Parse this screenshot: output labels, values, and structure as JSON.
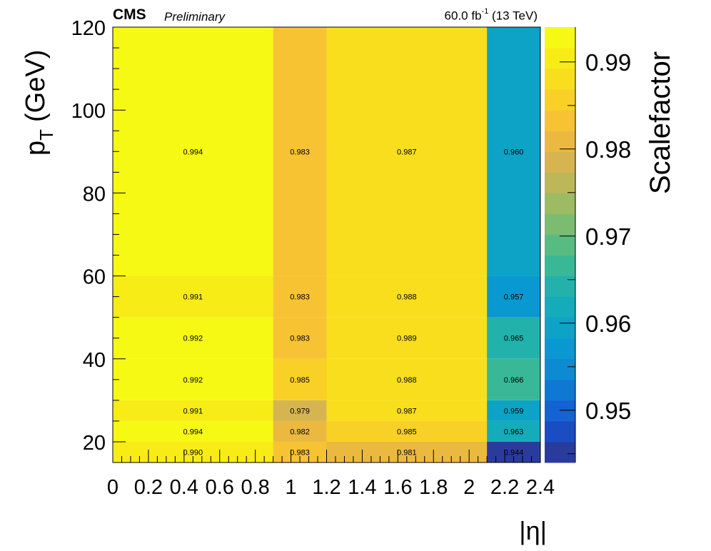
{
  "header": {
    "experiment": "CMS",
    "status": "Preliminary",
    "luminosity_prefix": "60.0 fb",
    "luminosity_exp": "-1",
    "energy": "(13 TeV)"
  },
  "chart_data": {
    "type": "heatmap",
    "title": "",
    "xlabel": "|η|",
    "ylabel_main": "p",
    "ylabel_sub": "T",
    "ylabel_unit": "(GeV)",
    "zlabel": "Scalefactor",
    "x_edges": [
      0,
      0.9,
      1.2,
      2.1,
      2.4
    ],
    "y_edges": [
      15,
      20,
      25,
      30,
      40,
      50,
      60,
      120
    ],
    "xlim": [
      0,
      2.4
    ],
    "ylim": [
      15,
      120
    ],
    "zlim": [
      0.944,
      0.994
    ],
    "x_tick_labels": [
      "0",
      "0.2",
      "0.4",
      "0.6",
      "0.8",
      "1",
      "1.2",
      "1.4",
      "1.6",
      "1.8",
      "2",
      "2.2",
      "2.4"
    ],
    "x_tick_values": [
      0,
      0.2,
      0.4,
      0.6,
      0.8,
      1,
      1.2,
      1.4,
      1.6,
      1.8,
      2,
      2.2,
      2.4
    ],
    "y_tick_labels": [
      "20",
      "40",
      "60",
      "80",
      "100",
      "120"
    ],
    "y_tick_values": [
      20,
      40,
      60,
      80,
      100,
      120
    ],
    "z_tick_labels": [
      "0.95",
      "0.96",
      "0.97",
      "0.98",
      "0.99"
    ],
    "z_tick_values": [
      0.95,
      0.96,
      0.97,
      0.98,
      0.99
    ],
    "values": [
      [
        "0.990",
        "0.983",
        "0.981",
        "0.944"
      ],
      [
        "0.994",
        "0.982",
        "0.985",
        "0.963"
      ],
      [
        "0.991",
        "0.979",
        "0.987",
        "0.959"
      ],
      [
        "0.992",
        "0.985",
        "0.988",
        "0.966"
      ],
      [
        "0.992",
        "0.983",
        "0.989",
        "0.965"
      ],
      [
        "0.991",
        "0.983",
        "0.988",
        "0.957"
      ],
      [
        "0.994",
        "0.983",
        "0.987",
        "0.960"
      ]
    ],
    "palette": [
      "#2a3c9b",
      "#1a4cc2",
      "#1462d3",
      "#0f78d2",
      "#0c8bd1",
      "#0a98d0",
      "#0ca3c7",
      "#14abbb",
      "#22b2ab",
      "#38b896",
      "#58bb82",
      "#7bbc71",
      "#9dbb63",
      "#bcb759",
      "#d6b550",
      "#ebb940",
      "#f7c332",
      "#f9d025",
      "#f8de1c",
      "#f7ec15",
      "#f6f914"
    ]
  }
}
